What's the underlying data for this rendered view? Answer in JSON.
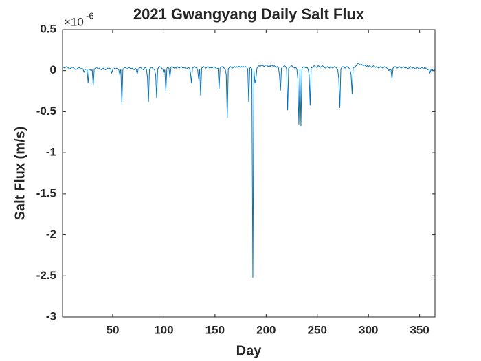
{
  "chart_data": {
    "type": "line",
    "title": "2021 Gwangyang Daily Salt Flux",
    "x_label": "Day",
    "y_label": "Salt Flux (m/s)",
    "y_exponent": {
      "base": "×10",
      "power": "-6"
    },
    "xlim": [
      1,
      365
    ],
    "xticks": [
      50,
      100,
      150,
      200,
      250,
      300,
      350
    ],
    "ylim": [
      -3,
      0.5
    ],
    "yticks": [
      -3,
      -2.5,
      -2,
      -1.5,
      -1,
      -0.5,
      0,
      0.5
    ],
    "grid": false,
    "x": [
      1,
      2,
      3,
      4,
      5,
      6,
      7,
      8,
      9,
      10,
      11,
      12,
      13,
      14,
      15,
      16,
      17,
      18,
      19,
      20,
      21,
      22,
      23,
      24,
      25,
      26,
      27,
      28,
      29,
      30,
      31,
      32,
      33,
      34,
      35,
      36,
      37,
      38,
      39,
      40,
      41,
      42,
      43,
      44,
      45,
      46,
      47,
      48,
      49,
      50,
      51,
      52,
      53,
      54,
      55,
      56,
      57,
      58,
      59,
      60,
      61,
      62,
      63,
      64,
      65,
      66,
      67,
      68,
      69,
      70,
      71,
      72,
      73,
      74,
      75,
      76,
      77,
      78,
      79,
      80,
      81,
      82,
      83,
      84,
      85,
      86,
      87,
      88,
      89,
      90,
      91,
      92,
      93,
      94,
      95,
      96,
      97,
      98,
      99,
      100,
      101,
      102,
      103,
      104,
      105,
      106,
      107,
      108,
      109,
      110,
      111,
      112,
      113,
      114,
      115,
      116,
      117,
      118,
      119,
      120,
      121,
      122,
      123,
      124,
      125,
      126,
      127,
      128,
      129,
      130,
      131,
      132,
      133,
      134,
      135,
      136,
      137,
      138,
      139,
      140,
      141,
      142,
      143,
      144,
      145,
      146,
      147,
      148,
      149,
      150,
      151,
      152,
      153,
      154,
      155,
      156,
      157,
      158,
      159,
      160,
      161,
      162,
      163,
      164,
      165,
      166,
      167,
      168,
      169,
      170,
      171,
      172,
      173,
      174,
      175,
      176,
      177,
      178,
      179,
      180,
      181,
      182,
      183,
      184,
      185,
      186,
      187,
      188,
      189,
      190,
      191,
      192,
      193,
      194,
      195,
      196,
      197,
      198,
      199,
      200,
      201,
      202,
      203,
      204,
      205,
      206,
      207,
      208,
      209,
      210,
      211,
      212,
      213,
      214,
      215,
      216,
      217,
      218,
      219,
      220,
      221,
      222,
      223,
      224,
      225,
      226,
      227,
      228,
      229,
      230,
      231,
      232,
      233,
      234,
      235,
      236,
      237,
      238,
      239,
      240,
      241,
      242,
      243,
      244,
      245,
      246,
      247,
      248,
      249,
      250,
      251,
      252,
      253,
      254,
      255,
      256,
      257,
      258,
      259,
      260,
      261,
      262,
      263,
      264,
      265,
      266,
      267,
      268,
      269,
      270,
      271,
      272,
      273,
      274,
      275,
      276,
      277,
      278,
      279,
      280,
      281,
      282,
      283,
      284,
      285,
      286,
      287,
      288,
      289,
      290,
      291,
      292,
      293,
      294,
      295,
      296,
      297,
      298,
      299,
      300,
      301,
      302,
      303,
      304,
      305,
      306,
      307,
      308,
      309,
      310,
      311,
      312,
      313,
      314,
      315,
      316,
      317,
      318,
      319,
      320,
      321,
      322,
      323,
      324,
      325,
      326,
      327,
      328,
      329,
      330,
      331,
      332,
      333,
      334,
      335,
      336,
      337,
      338,
      339,
      340,
      341,
      342,
      343,
      344,
      345,
      346,
      347,
      348,
      349,
      350,
      351,
      352,
      353,
      354,
      355,
      356,
      357,
      358,
      359,
      360,
      361,
      362,
      363,
      364,
      365
    ],
    "series": [
      {
        "color": "#0072BD",
        "values": [
          0.04,
          0.04,
          0.03,
          0.04,
          0.05,
          0.04,
          0.03,
          0.02,
          0.03,
          0.04,
          0.04,
          0.03,
          0.02,
          0.01,
          0.02,
          0.03,
          0.04,
          0.03,
          0.02,
          0.03,
          0.02,
          -0.02,
          0.01,
          0.02,
          0.01,
          -0.15,
          0.02,
          0.01,
          0.0,
          0.01,
          -0.18,
          0.02,
          0.03,
          0.04,
          0.03,
          0.02,
          0.03,
          0.02,
          0.01,
          0.02,
          0.03,
          0.02,
          0.01,
          0.02,
          0.03,
          0.02,
          0.03,
          0.02,
          -0.03,
          0.01,
          0.02,
          0.03,
          0.02,
          0.03,
          0.02,
          0.01,
          -0.05,
          0.02,
          -0.4,
          0.01,
          0.03,
          0.04,
          0.03,
          0.02,
          0.03,
          0.04,
          0.03,
          0.02,
          0.03,
          0.02,
          0.01,
          0.03,
          0.02,
          -0.04,
          0.02,
          0.03,
          0.04,
          0.03,
          0.02,
          0.01,
          0.03,
          0.04,
          0.02,
          -0.08,
          -0.38,
          0.02,
          0.03,
          0.04,
          0.03,
          0.02,
          0.01,
          -0.05,
          -0.33,
          0.02,
          0.04,
          0.05,
          0.04,
          0.03,
          0.02,
          -0.03,
          0.01,
          -0.25,
          0.03,
          0.04,
          0.03,
          -0.08,
          0.04,
          0.05,
          0.04,
          0.03,
          0.04,
          0.03,
          0.05,
          0.04,
          0.03,
          0.04,
          0.05,
          0.04,
          0.03,
          0.04,
          0.03,
          0.02,
          0.03,
          0.04,
          0.03,
          -0.02,
          -0.15,
          0.03,
          0.04,
          0.05,
          0.04,
          0.03,
          0.02,
          -0.1,
          0.02,
          -0.3,
          0.03,
          0.04,
          0.05,
          0.04,
          0.03,
          0.04,
          0.05,
          0.04,
          0.03,
          0.04,
          0.03,
          0.04,
          0.05,
          0.04,
          0.03,
          0.02,
          0.03,
          -0.22,
          0.03,
          0.04,
          0.05,
          0.04,
          0.03,
          0.02,
          -0.05,
          -0.57,
          0.02,
          0.04,
          0.05,
          0.04,
          0.03,
          0.04,
          0.05,
          0.04,
          0.05,
          0.04,
          0.05,
          0.05,
          0.04,
          0.05,
          0.04,
          0.05,
          0.04,
          0.05,
          0.04,
          0.02,
          -0.38,
          0.03,
          0.04,
          0.02,
          -2.52,
          0.01,
          -0.15,
          -0.1,
          0.03,
          0.05,
          0.06,
          0.05,
          0.06,
          0.07,
          0.06,
          0.05,
          0.06,
          0.07,
          0.06,
          0.05,
          0.06,
          0.05,
          0.07,
          0.06,
          0.05,
          0.06,
          0.05,
          0.04,
          0.05,
          0.04,
          -0.05,
          -0.24,
          0.03,
          0.04,
          0.05,
          0.06,
          0.05,
          0.02,
          -0.48,
          0.03,
          0.04,
          0.05,
          0.06,
          0.05,
          0.04,
          0.03,
          0.04,
          0.02,
          -0.1,
          -0.66,
          0.02,
          -0.67,
          0.03,
          0.04,
          0.05,
          0.04,
          0.03,
          0.04,
          0.02,
          -0.05,
          -0.42,
          0.03,
          0.04,
          0.05,
          0.06,
          0.05,
          0.04,
          0.05,
          0.06,
          0.05,
          0.04,
          0.05,
          0.06,
          0.05,
          0.04,
          0.03,
          0.04,
          0.05,
          0.04,
          0.03,
          0.05,
          0.04,
          0.03,
          0.04,
          0.05,
          0.04,
          0.03,
          0.01,
          -0.1,
          -0.45,
          0.02,
          0.04,
          0.05,
          0.04,
          0.03,
          0.04,
          0.05,
          0.04,
          0.03,
          0.01,
          -0.05,
          -0.28,
          0.03,
          0.04,
          0.05,
          0.06,
          0.08,
          0.09,
          0.08,
          0.07,
          0.08,
          0.07,
          0.06,
          0.07,
          0.06,
          0.05,
          0.06,
          0.05,
          0.06,
          0.05,
          0.04,
          0.05,
          0.06,
          0.05,
          0.04,
          0.05,
          0.04,
          0.03,
          0.04,
          0.05,
          0.04,
          0.03,
          0.04,
          0.05,
          0.04,
          0.03,
          0.02,
          0.0,
          0.02,
          0.01,
          -0.1,
          0.03,
          0.04,
          0.05,
          0.04,
          0.03,
          0.04,
          0.05,
          0.04,
          0.03,
          0.04,
          0.05,
          0.04,
          0.03,
          0.04,
          0.03,
          0.02,
          0.04,
          0.05,
          0.04,
          0.03,
          0.04,
          0.03,
          0.02,
          0.03,
          0.04,
          0.03,
          0.02,
          0.03,
          0.04,
          0.03,
          0.02,
          0.04,
          0.03,
          0.02,
          0.01,
          0.02,
          -0.03,
          0.01,
          0.0,
          0.02,
          0.01,
          0.02
        ]
      }
    ]
  }
}
